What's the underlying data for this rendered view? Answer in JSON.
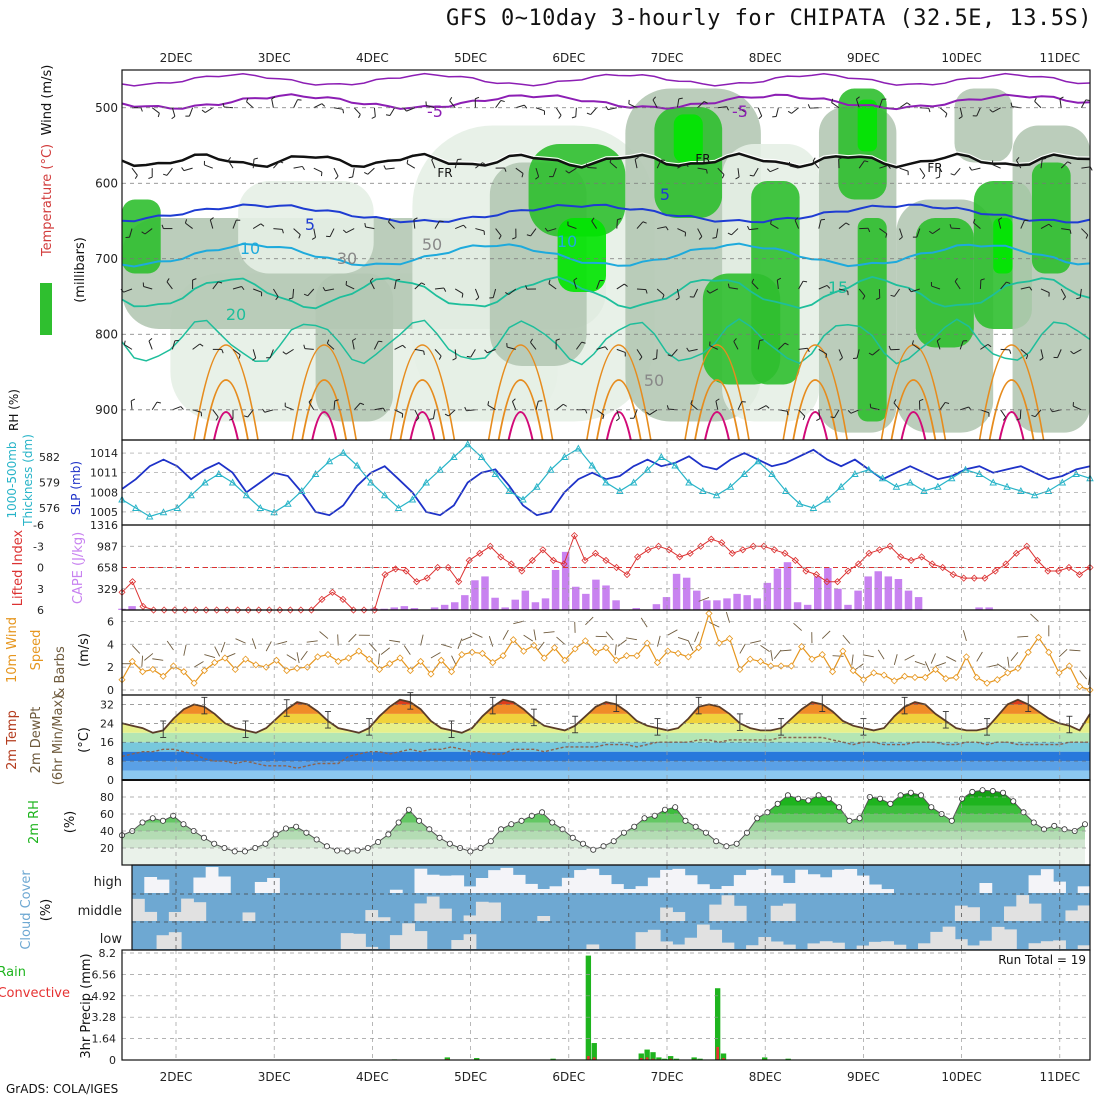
{
  "title": "GFS 0~10day 3-hourly for CHIPATA (32.5E, 13.5S)",
  "footer": "GrADS: COLA/IGES",
  "dates": [
    "2DEC",
    "3DEC",
    "4DEC",
    "5DEC",
    "6DEC",
    "7DEC",
    "8DEC",
    "9DEC",
    "10DEC",
    "11DEC"
  ],
  "colors": {
    "rh_light": "#e6f0e6",
    "rh_mid": "#b4c8b4",
    "rh_dark": "#8ca08c",
    "rh_green": "#2fbf2f",
    "rh_bright": "#00e600",
    "temp_purple": "#8c1eb4",
    "temp_blue": "#1e3cd2",
    "temp_cyan": "#1eaadc",
    "temp_teal": "#1ebe9b",
    "temp_orange": "#e68c1e",
    "temp_magenta": "#d20a78",
    "slp": "#1e32c8",
    "thickness": "#28b4c8",
    "cape": "#c882f0",
    "lifted": "#dc3232",
    "wind10": "#e6961e",
    "precip_total": "#1eb41e",
    "precip_conv": "#e63232",
    "cloud": "#6ea8d2"
  },
  "chart_data": [
    {
      "type": "heatmap",
      "name": "upper-air",
      "ylabel_parts": [
        "RH (%)",
        "Temperature (°C)",
        "Wind (m/s)"
      ],
      "yaxis_label": "(millibars)",
      "yticks": [
        500,
        600,
        700,
        800,
        900
      ],
      "ylim": [
        940,
        450
      ],
      "contour_labels": [
        "-5",
        "-5",
        "FR",
        "FR",
        "FR",
        "5",
        "5",
        "10",
        "10",
        "15",
        "20",
        "50",
        "30",
        "50"
      ]
    },
    {
      "type": "line",
      "name": "slp-thickness",
      "ylabel_left": "1000-500mb Thickness (dm)",
      "ylabel_right": "SLP (mb)",
      "yticks_left": [
        576,
        579,
        582
      ],
      "yticks_right": [
        1005,
        1008,
        1011,
        1014
      ],
      "ylim_right": [
        1003,
        1016
      ],
      "ylim_left": [
        574,
        584
      ],
      "series": [
        {
          "name": "SLP (mb)",
          "values": [
            1008.5,
            1010,
            1012,
            1013,
            1012,
            1010,
            1011.5,
            1012.5,
            1011,
            1008,
            1009.5,
            1011,
            1010.5,
            1008,
            1005,
            1004.5,
            1006,
            1009,
            1011,
            1012,
            1010,
            1008,
            1005,
            1004.5,
            1006,
            1009.5,
            1011,
            1011.5,
            1009,
            1006,
            1004.5,
            1005,
            1008,
            1010,
            1011,
            1010,
            1010.5,
            1012,
            1013,
            1012,
            1012.5,
            1013.5,
            1012,
            1011.5,
            1013,
            1014,
            1013,
            1012,
            1012.5,
            1013.5,
            1014.5,
            1013,
            1012,
            1013,
            1011.5,
            1010,
            1011,
            1012,
            1011,
            1010,
            1010.5,
            1011.5,
            1012,
            1011,
            1011.5,
            1012,
            1011,
            1010,
            1010.5,
            1011.5,
            1012
          ]
        },
        {
          "name": "1000-500mb Thickness (dm)",
          "values": [
            577,
            576,
            575,
            575.5,
            576,
            577.5,
            579,
            580,
            579,
            577.5,
            576,
            575.5,
            576.5,
            578,
            580,
            581.5,
            582.5,
            581,
            579,
            577.5,
            576,
            577,
            579,
            580.5,
            582,
            583.5,
            582,
            580,
            578,
            577,
            578.5,
            580.5,
            582,
            583,
            581,
            579,
            578,
            579,
            580.5,
            582,
            581,
            579,
            578,
            577.5,
            578.5,
            580,
            581.5,
            580,
            578,
            576.5,
            576,
            577,
            578.5,
            580,
            580.5,
            579.5,
            578.5,
            579,
            578,
            578.5,
            579.5,
            580.5,
            580,
            579,
            578.5,
            578,
            577.5,
            578,
            579,
            580,
            579.5
          ]
        }
      ]
    },
    {
      "type": "bar",
      "name": "cape-lifted",
      "ylabel_left": "Lifted Index",
      "ylabel_right": "CAPE (J/kg)",
      "yticks_left": [
        "6",
        "3",
        "0",
        "-3",
        "-6"
      ],
      "yticks_right": [
        329,
        658,
        987,
        1316
      ],
      "ylim_right": [
        0,
        1316
      ],
      "ylim_left": [
        6,
        -6
      ],
      "series": [
        {
          "name": "CAPE (J/kg)",
          "values": [
            20,
            60,
            0,
            0,
            0,
            0,
            0,
            0,
            0,
            0,
            0,
            0,
            0,
            0,
            0,
            0,
            0,
            0,
            0,
            0,
            0,
            0,
            0,
            0,
            15,
            25,
            20,
            40,
            60,
            30,
            0,
            40,
            80,
            120,
            230,
            460,
            520,
            190,
            40,
            160,
            300,
            120,
            180,
            620,
            900,
            360,
            250,
            470,
            380,
            150,
            0,
            30,
            0,
            90,
            200,
            560,
            500,
            300,
            150,
            150,
            180,
            250,
            230,
            180,
            420,
            640,
            740,
            120,
            80,
            520,
            650,
            330,
            80,
            300,
            520,
            600,
            520,
            480,
            300,
            200,
            0,
            0,
            0,
            0,
            0,
            40,
            40,
            0,
            0,
            0,
            0,
            0,
            0,
            0,
            0,
            0,
            0
          ]
        },
        {
          "name": "Lifted Index",
          "values": [
            3.5,
            2,
            5.5,
            6,
            6,
            6,
            6,
            6,
            6,
            6,
            6,
            6,
            6,
            6,
            6,
            6,
            6,
            6,
            6,
            4.5,
            3.5,
            4.5,
            6,
            6,
            6,
            1,
            0.2,
            0.5,
            2,
            1.5,
            0,
            0,
            2,
            -1,
            -2,
            -3,
            -1.5,
            -0.5,
            0.5,
            -1,
            -2.5,
            -1,
            -0.5,
            -4.5,
            -1,
            -2,
            -1,
            0,
            1,
            -1.5,
            -2.5,
            -3,
            -2.5,
            -1.5,
            -2,
            -3,
            -4,
            -3.5,
            -2,
            -2.5,
            -3,
            -3,
            -2.5,
            -2,
            -1,
            0.5,
            1,
            2,
            2,
            0.5,
            -0.5,
            -2,
            -2.5,
            -3,
            -1.5,
            -1,
            -1.5,
            -0.5,
            0,
            1,
            1.5,
            1.5,
            1.5,
            0.5,
            -0.5,
            -2,
            -3,
            -1,
            0.5,
            0.5,
            0,
            1,
            0
          ]
        }
      ]
    },
    {
      "type": "line",
      "name": "wind10",
      "ylabel_parts": [
        "10m Wind",
        "Speed",
        "(m/s)",
        "& Barbs"
      ],
      "yticks": [
        0,
        2,
        4,
        6
      ],
      "ylim": [
        0,
        7
      ],
      "series": [
        {
          "name": "10m Wind Speed (m/s)",
          "values": [
            0.9,
            2.5,
            1.6,
            1.8,
            1.2,
            2.1,
            1.6,
            0.6,
            1.7,
            2.4,
            2.8,
            1.8,
            2.7,
            2.2,
            2,
            2.6,
            1.7,
            1.9,
            2,
            2.9,
            3.1,
            2.5,
            2.8,
            3.4,
            2.7,
            1.8,
            2.3,
            2.8,
            1.7,
            2.5,
            1.4,
            2.6,
            1.6,
            3.1,
            3.3,
            3.2,
            2.4,
            3,
            4.4,
            3.4,
            3.9,
            2.8,
            3.7,
            2.6,
            3.6,
            4.3,
            3.3,
            3.7,
            2.6,
            3,
            3,
            4.1,
            2.4,
            3.4,
            3.2,
            2.9,
            3.7,
            6.7,
            4.1,
            4.5,
            1.8,
            2.7,
            2.5,
            2.1,
            2.1,
            2.1,
            3.8,
            2.7,
            3.1,
            1.6,
            3.4,
            1.7,
            0.9,
            1.5,
            1.3,
            0.8,
            1.2,
            1.1,
            1.1,
            1.8,
            1,
            1.1,
            2.9,
            1.1,
            0.6,
            0.9,
            1.5,
            1.9,
            3.3,
            4.6,
            3.3,
            1.5,
            2.1,
            0.3,
            0
          ]
        }
      ]
    },
    {
      "type": "area",
      "name": "temp-dewpoint",
      "ylabel_parts": [
        "2m Temp",
        "2m DewPt",
        "(6hr Min/Max)",
        "(°C)"
      ],
      "yticks": [
        0,
        8,
        16,
        24,
        32
      ],
      "ylim": [
        0,
        36
      ],
      "series": [
        {
          "name": "2m Temp",
          "values": [
            24,
            23,
            22,
            20,
            21,
            26,
            30,
            32,
            31,
            28,
            24,
            22,
            21,
            20,
            22,
            26,
            30,
            33,
            32,
            29,
            25,
            22,
            21,
            20,
            22,
            27,
            31,
            34,
            33,
            30,
            25,
            22,
            21,
            20,
            22,
            27,
            31,
            34,
            33,
            30,
            26,
            23,
            22,
            21,
            23,
            27,
            31,
            33,
            32,
            29,
            25,
            23,
            22,
            21,
            22,
            26,
            31,
            32,
            31,
            28,
            24,
            22,
            21,
            21,
            22,
            26,
            30,
            33,
            32,
            29,
            25,
            23,
            22,
            21,
            22,
            27,
            31,
            33,
            32,
            28,
            25,
            22,
            21,
            21,
            22,
            27,
            32,
            34,
            32,
            29,
            26,
            24,
            23,
            21,
            28
          ]
        },
        {
          "name": "2m DewPt",
          "values": [
            10,
            11,
            12,
            12,
            13,
            13,
            12,
            11,
            9,
            8,
            8,
            7,
            8,
            7,
            6,
            6,
            6,
            5,
            6,
            7,
            7,
            7,
            10,
            11,
            12,
            12,
            11,
            12,
            13,
            12,
            13,
            13,
            14,
            13,
            12,
            12,
            11,
            11,
            13,
            13,
            13,
            12,
            13,
            14,
            14,
            14,
            14,
            15,
            15,
            15,
            14,
            15,
            16,
            16,
            16,
            16,
            17,
            17,
            16,
            17,
            17,
            17,
            17,
            17,
            18,
            18,
            18,
            18,
            18,
            17,
            16,
            15,
            16,
            16,
            15,
            15,
            15,
            16,
            16,
            16,
            15,
            15,
            16,
            16,
            15,
            16,
            16,
            15,
            15,
            15,
            15,
            15,
            16,
            16,
            16
          ]
        }
      ]
    },
    {
      "type": "area",
      "name": "rh2m",
      "ylabel_parts": [
        "2m RH",
        "(%)"
      ],
      "yticks": [
        20,
        40,
        60,
        80
      ],
      "ylim": [
        0,
        100
      ],
      "series": [
        {
          "name": "2m RH",
          "values": [
            35,
            40,
            50,
            55,
            52,
            58,
            48,
            40,
            32,
            25,
            20,
            16,
            16,
            20,
            25,
            36,
            43,
            45,
            38,
            30,
            22,
            17,
            16,
            17,
            20,
            27,
            36,
            50,
            65,
            52,
            42,
            32,
            25,
            20,
            16,
            20,
            28,
            42,
            48,
            52,
            58,
            62,
            50,
            42,
            32,
            25,
            18,
            22,
            28,
            38,
            45,
            55,
            58,
            65,
            68,
            52,
            45,
            38,
            28,
            22,
            25,
            38,
            55,
            62,
            72,
            82,
            78,
            76,
            82,
            78,
            68,
            52,
            55,
            80,
            78,
            72,
            82,
            85,
            82,
            68,
            60,
            52,
            78,
            86,
            88,
            87,
            85,
            75,
            62,
            50,
            42,
            46,
            42,
            40,
            48
          ]
        }
      ]
    },
    {
      "type": "bar",
      "name": "cloud-cover",
      "ylabel_parts": [
        "Cloud Cover",
        "(%)"
      ],
      "levels": [
        "high",
        "middle",
        "low"
      ]
    },
    {
      "type": "bar",
      "name": "precip",
      "ylabel_parts": [
        "Total / Rain",
        "Convective",
        "3hr Precip (mm)"
      ],
      "yticks": [
        0,
        1.64,
        3.28,
        4.92,
        6.56,
        8.2
      ],
      "ylim": [
        0,
        8.2
      ],
      "annotation": "Run Total = 19",
      "total": [
        0,
        0,
        0,
        0,
        0,
        0,
        0,
        0,
        0,
        0,
        0,
        0,
        0,
        0,
        0,
        0,
        0,
        0,
        0,
        0,
        0,
        0,
        0,
        0,
        0,
        0,
        0,
        0,
        0,
        0,
        0,
        0,
        0,
        0,
        0,
        0,
        0,
        0,
        0,
        0,
        0,
        0,
        0,
        0,
        0,
        0.05,
        0,
        0,
        0,
        0,
        0,
        0,
        0,
        0,
        0.2,
        0,
        0,
        0,
        0,
        0.15,
        0,
        0,
        0,
        0,
        0,
        0,
        0,
        0,
        0,
        0,
        0,
        0,
        0.1,
        0,
        0,
        0,
        0,
        0,
        8.0,
        1.3,
        0,
        0,
        0,
        0,
        0,
        0,
        0,
        0.5,
        0.8,
        0.6,
        0.2,
        0.1,
        0.3,
        0.1,
        0,
        0,
        0.2,
        0.1,
        0,
        0,
        5.5,
        0.5,
        0,
        0,
        0,
        0,
        0,
        0,
        0.2,
        0,
        0,
        0,
        0.1,
        0,
        0,
        0,
        0,
        0,
        0,
        0,
        0,
        0,
        0,
        0,
        0,
        0,
        0,
        0,
        0,
        0,
        0,
        0,
        0,
        0,
        0,
        0,
        0,
        0,
        0,
        0,
        0,
        0,
        0,
        0,
        0,
        0,
        0,
        0,
        0,
        0,
        0,
        0,
        0,
        0,
        0,
        0,
        0,
        0,
        0,
        0,
        0,
        0,
        0
      ],
      "convective": [
        0,
        0,
        0,
        0,
        0,
        0,
        0,
        0,
        0,
        0,
        0,
        0,
        0,
        0,
        0,
        0,
        0,
        0,
        0,
        0,
        0,
        0,
        0,
        0,
        0,
        0,
        0,
        0,
        0,
        0,
        0,
        0,
        0,
        0,
        0,
        0,
        0,
        0,
        0,
        0,
        0,
        0,
        0,
        0,
        0,
        0.02,
        0,
        0,
        0,
        0,
        0,
        0,
        0,
        0,
        0.08,
        0,
        0,
        0,
        0,
        0.05,
        0,
        0,
        0,
        0,
        0,
        0,
        0,
        0,
        0,
        0,
        0,
        0,
        0.04,
        0,
        0,
        0,
        0,
        0,
        0.3,
        0.2,
        0,
        0,
        0,
        0,
        0,
        0,
        0,
        0.15,
        0.2,
        0.1,
        0.05,
        0.03,
        0.1,
        0.03,
        0,
        0,
        0.05,
        0.03,
        0,
        0,
        1.0,
        0.15,
        0,
        0,
        0,
        0,
        0,
        0,
        0.05,
        0,
        0,
        0,
        0.03,
        0,
        0,
        0,
        0,
        0,
        0,
        0,
        0,
        0,
        0,
        0,
        0,
        0,
        0,
        0,
        0,
        0,
        0,
        0,
        0,
        0,
        0,
        0,
        0,
        0,
        0,
        0,
        0,
        0,
        0,
        0,
        0,
        0,
        0,
        0,
        0,
        0,
        0,
        0,
        0,
        0,
        0,
        0,
        0,
        0,
        0,
        0,
        0,
        0,
        0
      ]
    }
  ]
}
